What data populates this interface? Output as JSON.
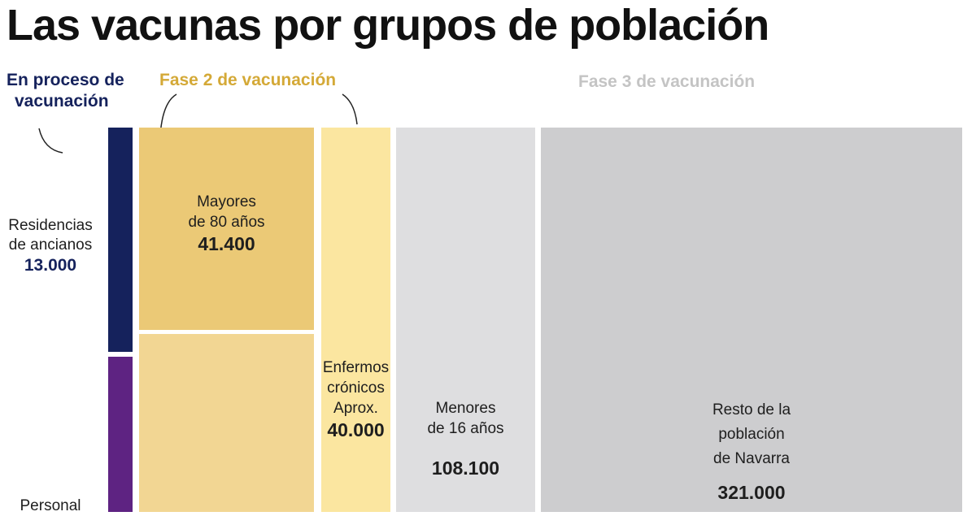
{
  "title": "Las vacunas por grupos de población",
  "colors": {
    "phase1": "#15225c",
    "phase2": "#d4a937",
    "phase3": "#c4c4c4",
    "residencias": "#15225c",
    "personal": "#5e2382",
    "mayores80": "#ebc976",
    "fase2_inferior": "#f2d693",
    "cronicos": "#fbe6a0",
    "menores16": "#dedee0",
    "resto": "#cdcdcf"
  },
  "chart_data": {
    "type": "treemap",
    "title": "Las vacunas por grupos de población",
    "phases": [
      {
        "id": "phase1",
        "name_lines": [
          "En proceso de",
          "vacunación"
        ]
      },
      {
        "id": "phase2",
        "name": "Fase 2 de vacunación"
      },
      {
        "id": "phase3",
        "name": "Fase 3 de vacunación"
      }
    ],
    "groups": [
      {
        "id": "residencias",
        "phase": "phase1",
        "label_lines": [
          "Residencias",
          "de ancianos"
        ],
        "value": 13000,
        "value_label": "13.000"
      },
      {
        "id": "personal",
        "phase": "phase1",
        "label_lines": [
          "Personal"
        ],
        "value": null,
        "value_label": ""
      },
      {
        "id": "mayores80",
        "phase": "phase2",
        "label_lines": [
          "Mayores",
          "de 80 años"
        ],
        "value": 41400,
        "value_label": "41.400"
      },
      {
        "id": "fase2_inferior",
        "phase": "phase2",
        "label_lines": [],
        "value": null,
        "value_label": ""
      },
      {
        "id": "cronicos",
        "phase": "phase2",
        "label_lines": [
          "Enfermos",
          "crónicos",
          "Aprox."
        ],
        "value": 40000,
        "value_label": "40.000"
      },
      {
        "id": "menores16",
        "phase": "phase3",
        "label_lines": [
          "Menores",
          "de 16 años"
        ],
        "value": 108100,
        "value_label": "108.100"
      },
      {
        "id": "resto",
        "phase": "phase3",
        "label_lines": [
          "Resto de la",
          "población",
          "de Navarra"
        ],
        "value": 321000,
        "value_label": "321.000"
      }
    ]
  }
}
